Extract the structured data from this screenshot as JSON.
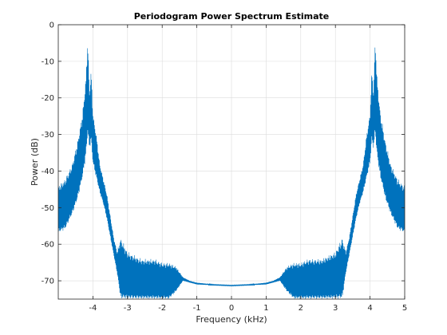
{
  "chart_data": {
    "type": "line",
    "title": "Periodogram Power Spectrum Estimate",
    "xlabel": "Frequency (kHz)",
    "ylabel": "Power (dB)",
    "xlim": [
      -5,
      5
    ],
    "ylim": [
      -75,
      0
    ],
    "grid": true,
    "xticks": [
      -4,
      -3,
      -2,
      -1,
      0,
      1,
      2,
      3,
      4,
      5
    ],
    "yticks": [
      0,
      -10,
      -20,
      -30,
      -40,
      -50,
      -60,
      -70
    ],
    "line_color": "#0072BD",
    "series": [
      {
        "name": "",
        "x": [
          -5.0,
          -4.8,
          -4.6,
          -4.45,
          -4.3,
          -4.2,
          -4.15,
          -4.1,
          -4.05,
          -4.0,
          -3.9,
          -3.8,
          -3.7,
          -3.6,
          -3.5,
          -3.4,
          -3.3,
          -3.2,
          -3.0,
          -2.8,
          -2.6,
          -2.4,
          -2.2,
          -2.0,
          -1.8,
          -1.6,
          -1.4,
          -1.2,
          -1.0,
          -0.5,
          0.0,
          0.5,
          1.0,
          1.2,
          1.4,
          1.6,
          1.8,
          2.0,
          2.2,
          2.4,
          2.6,
          2.8,
          3.0,
          3.2,
          3.3,
          3.4,
          3.5,
          3.6,
          3.7,
          3.8,
          3.9,
          4.0,
          4.05,
          4.1,
          4.15,
          4.2,
          4.3,
          4.45,
          4.6,
          4.8,
          5.0
        ],
        "env_max": [
          -44,
          -42,
          -38,
          -32,
          -24,
          -14,
          -3,
          -18,
          -12,
          -24,
          -30,
          -38,
          -42,
          -46,
          -52,
          -58,
          -62,
          -58,
          -62,
          -63,
          -64,
          -64,
          -64,
          -65,
          -65,
          -66,
          -69,
          -70,
          -70.5,
          -71,
          -71.2,
          -71,
          -70.5,
          -70,
          -69,
          -66,
          -65,
          -65,
          -64,
          -64,
          -64,
          -63,
          -62,
          -58,
          -62,
          -58,
          -52,
          -46,
          -42,
          -38,
          -30,
          -24,
          -12,
          -18,
          -3,
          -14,
          -24,
          -32,
          -38,
          -42,
          -44
        ],
        "env_min": [
          -57,
          -56,
          -52,
          -48,
          -42,
          -36,
          -30,
          -34,
          -32,
          -38,
          -42,
          -46,
          -49,
          -53,
          -58,
          -63,
          -68,
          -75,
          -75,
          -75,
          -75,
          -75,
          -75,
          -75,
          -75,
          -73,
          -70,
          -70.5,
          -71,
          -71.2,
          -71.4,
          -71.2,
          -71,
          -70.5,
          -70,
          -73,
          -75,
          -75,
          -75,
          -75,
          -75,
          -75,
          -75,
          -75,
          -68,
          -63,
          -58,
          -53,
          -49,
          -46,
          -42,
          -38,
          -32,
          -34,
          -30,
          -36,
          -42,
          -48,
          -52,
          -56,
          -57
        ]
      }
    ]
  }
}
